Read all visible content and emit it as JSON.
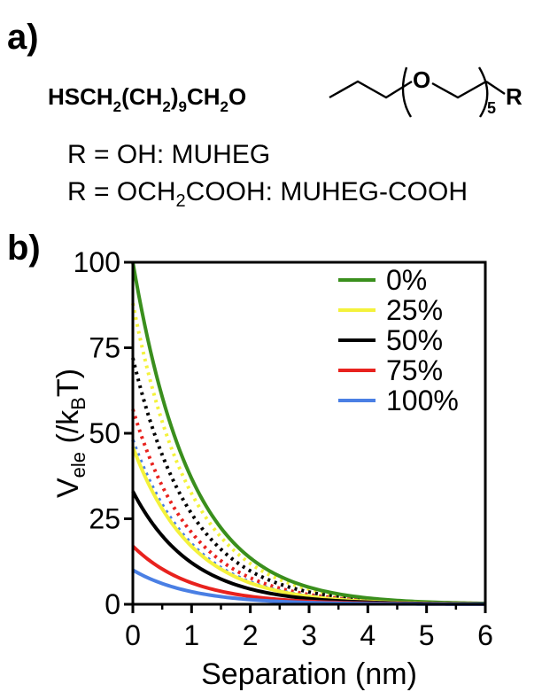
{
  "panel_a": {
    "label": "a)",
    "formula": {
      "left_text_1": "HSCH",
      "sub_1": "2",
      "left_text_2": "(CH",
      "sub_2": "2",
      "left_text_3": ")",
      "sub_3": "9",
      "left_text_4": "CH",
      "sub_4": "2",
      "left_text_5": "O",
      "ring_atom": "O",
      "repeat_count": "5",
      "r_group": "R"
    },
    "definitions": [
      {
        "prefix": "R = ",
        "formula_a": "OH",
        "sub": "",
        "formula_b": "",
        "name": ": MUHEG"
      },
      {
        "prefix": "R = ",
        "formula_a": "OCH",
        "sub": "2",
        "formula_b": "COOH",
        "name": ": MUHEG-COOH"
      }
    ]
  },
  "panel_b": {
    "label": "b)"
  },
  "chart_data": {
    "type": "line",
    "xlabel": "Separation (nm)",
    "ylabel_main": "V",
    "ylabel_sub": "ele",
    "ylabel_unit_open": " (/k",
    "ylabel_unit_sub": "B",
    "ylabel_unit_close": "T)",
    "xlim": [
      0,
      6
    ],
    "ylim": [
      0,
      100
    ],
    "xticks": [
      0,
      1,
      2,
      3,
      4,
      5,
      6
    ],
    "yticks": [
      0,
      25,
      50,
      75,
      100
    ],
    "grid": false,
    "legend_position": "top-right",
    "decay_length_nm": 1.0,
    "series": [
      {
        "name": "0%",
        "color": "#3a8f1d",
        "solid_v0": 100,
        "dotted_v0": null
      },
      {
        "name": "25%",
        "color": "#f4f23b",
        "solid_v0": 46,
        "dotted_v0": 88
      },
      {
        "name": "50%",
        "color": "#000000",
        "solid_v0": 33,
        "dotted_v0": 72
      },
      {
        "name": "75%",
        "color": "#e8221e",
        "solid_v0": 17,
        "dotted_v0": 57
      },
      {
        "name": "100%",
        "color": "#4a7fe4",
        "solid_v0": 10,
        "dotted_v0": 48
      }
    ]
  }
}
